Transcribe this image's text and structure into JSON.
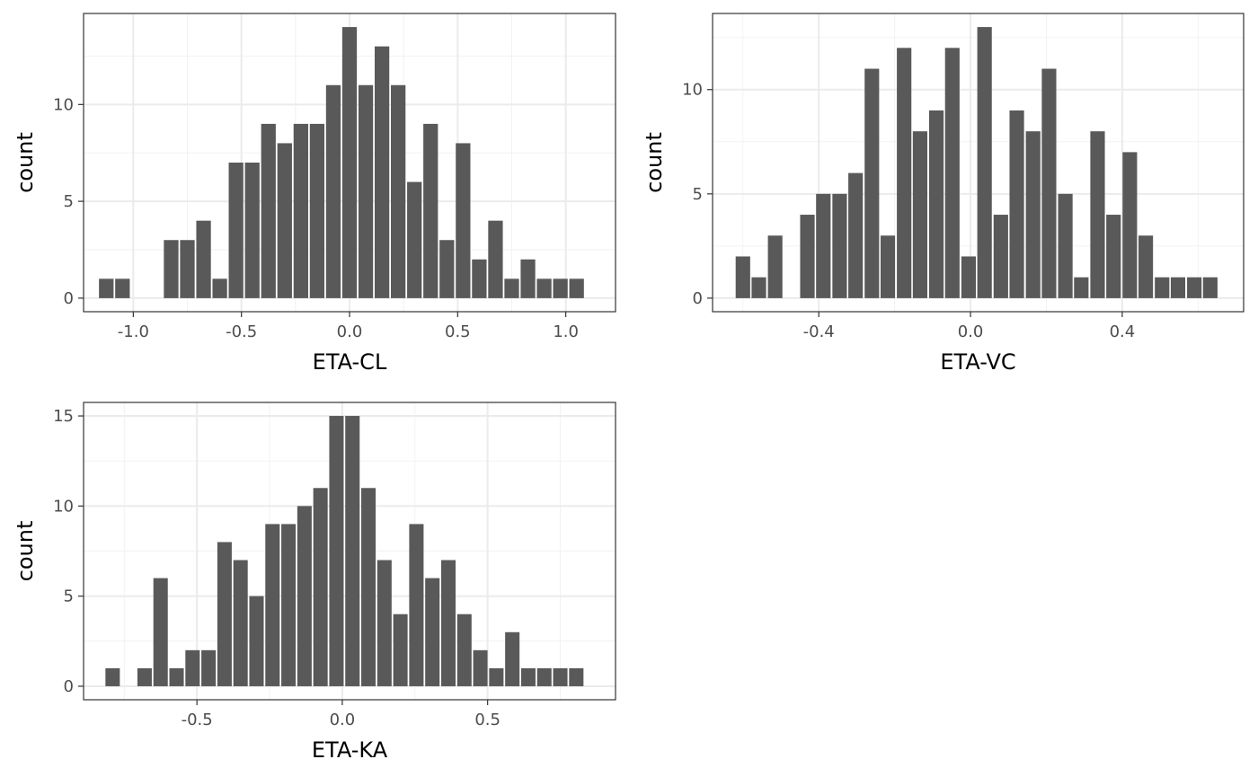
{
  "colors": {
    "bar": "#595959",
    "panel_border": "#333333",
    "grid_major": "#ebebeb",
    "grid_minor": "#f2f2f2",
    "background": "#ffffff"
  },
  "chart_data": [
    {
      "type": "bar",
      "variant": "histogram",
      "xlabel": "ETA-CL",
      "ylabel": "count",
      "bin_width": 0.075,
      "xlim": [
        -1.23,
        1.23
      ],
      "ylim": [
        -0.7,
        14.7
      ],
      "x_ticks": [
        -1.0,
        -0.5,
        0.0,
        0.5,
        1.0
      ],
      "x_tick_labels": [
        "-1.0",
        "-0.5",
        "0.0",
        "0.5",
        "1.0"
      ],
      "y_ticks": [
        0,
        5,
        10
      ],
      "y_tick_labels": [
        "0",
        "5",
        "10"
      ],
      "x": [
        -1.125,
        -1.05,
        -0.975,
        -0.9,
        -0.825,
        -0.75,
        -0.675,
        -0.6,
        -0.525,
        -0.45,
        -0.375,
        -0.3,
        -0.225,
        -0.15,
        -0.075,
        0.0,
        0.075,
        0.15,
        0.225,
        0.3,
        0.375,
        0.45,
        0.525,
        0.6,
        0.675,
        0.75,
        0.825,
        0.9,
        0.975,
        1.05
      ],
      "values": [
        1,
        1,
        0,
        0,
        3,
        3,
        4,
        1,
        7,
        7,
        9,
        8,
        9,
        9,
        11,
        14,
        11,
        13,
        11,
        6,
        9,
        3,
        8,
        2,
        4,
        1,
        2,
        1,
        1,
        1
      ],
      "grid": true
    },
    {
      "type": "bar",
      "variant": "histogram",
      "xlabel": "ETA-VC",
      "ylabel": "count",
      "bin_width": 0.0425,
      "xlim": [
        -0.68,
        0.72
      ],
      "ylim": [
        -0.65,
        13.65
      ],
      "x_ticks": [
        -0.4,
        0.0,
        0.4
      ],
      "x_tick_labels": [
        "-0.4",
        "0.0",
        "0.4"
      ],
      "y_ticks": [
        0,
        5,
        10
      ],
      "y_tick_labels": [
        "0",
        "5",
        "10"
      ],
      "x": [
        -0.6,
        -0.558,
        -0.515,
        -0.473,
        -0.43,
        -0.388,
        -0.345,
        -0.303,
        -0.26,
        -0.218,
        -0.175,
        -0.133,
        -0.09,
        -0.048,
        -0.005,
        0.037,
        0.08,
        0.122,
        0.165,
        0.207,
        0.25,
        0.292,
        0.335,
        0.377,
        0.42,
        0.462,
        0.505,
        0.547,
        0.59,
        0.632
      ],
      "values": [
        2,
        1,
        3,
        0,
        4,
        5,
        5,
        6,
        11,
        3,
        12,
        8,
        9,
        12,
        2,
        13,
        4,
        9,
        8,
        11,
        5,
        1,
        8,
        4,
        7,
        3,
        1,
        1,
        1,
        1
      ],
      "grid": true
    },
    {
      "type": "bar",
      "variant": "histogram",
      "xlabel": "ETA-KA",
      "ylabel": "count",
      "bin_width": 0.055,
      "xlim": [
        -0.89,
        0.94
      ],
      "ylim": [
        -0.75,
        15.75
      ],
      "x_ticks": [
        -0.5,
        0.0,
        0.5
      ],
      "x_tick_labels": [
        "-0.5",
        "0.0",
        "0.5"
      ],
      "y_ticks": [
        0,
        5,
        10,
        15
      ],
      "y_tick_labels": [
        "0",
        "5",
        "10",
        "15"
      ],
      "x": [
        -0.79,
        -0.735,
        -0.68,
        -0.625,
        -0.57,
        -0.515,
        -0.46,
        -0.405,
        -0.35,
        -0.295,
        -0.24,
        -0.185,
        -0.13,
        -0.075,
        -0.02,
        0.035,
        0.09,
        0.145,
        0.2,
        0.255,
        0.31,
        0.365,
        0.42,
        0.475,
        0.53,
        0.585,
        0.64,
        0.695,
        0.75,
        0.805
      ],
      "values": [
        1,
        0,
        1,
        6,
        1,
        2,
        2,
        8,
        7,
        5,
        9,
        9,
        10,
        11,
        15,
        15,
        11,
        7,
        4,
        9,
        6,
        7,
        4,
        2,
        1,
        3,
        1,
        1,
        1,
        1
      ],
      "grid": true
    }
  ]
}
